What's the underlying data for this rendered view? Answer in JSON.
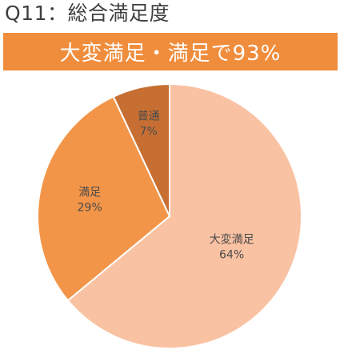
{
  "title": "Q11：総合満足度",
  "banner": "大変満足・満足で93%",
  "colors": {
    "banner_bg": "#f08d3c"
  },
  "chart_data": {
    "type": "pie",
    "start_angle_deg": 0,
    "direction": "clockwise",
    "slices": [
      {
        "label": "大変満足",
        "value": 64,
        "value_label": "64%",
        "color": "#f9c2a3"
      },
      {
        "label": "満足",
        "value": 29,
        "value_label": "29%",
        "color": "#f39548"
      },
      {
        "label": "普通",
        "value": 7,
        "value_label": "7%",
        "color": "#c76f33"
      }
    ]
  }
}
